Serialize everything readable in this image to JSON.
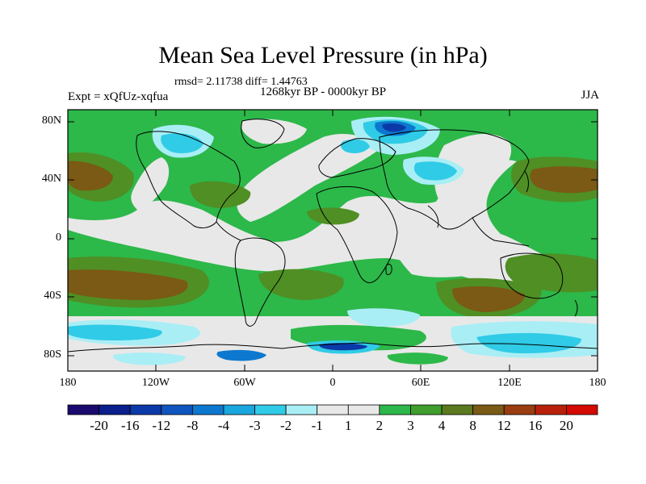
{
  "title": "Mean Sea Level Pressure (in hPa)",
  "stats_line": "rmsd= 2.11738 diff= 1.44763",
  "period": "1268kyr BP - 0000kyr BP",
  "experiment": "Expt = xQfUz-xqfua",
  "season": "JJA",
  "map": {
    "lat_labels": [
      "80N",
      "40N",
      "0",
      "40S",
      "80S"
    ],
    "lon_labels": [
      "180",
      "120W",
      "60W",
      "0",
      "60E",
      "120E",
      "180"
    ]
  },
  "colorbar": {
    "labels": [
      "-20",
      "-16",
      "-12",
      "-8",
      "-4",
      "-3",
      "-2",
      "-1",
      "1",
      "2",
      "3",
      "4",
      "8",
      "12",
      "16",
      "20"
    ],
    "colors": [
      "#1a0a6e",
      "#0a1f8c",
      "#0b3aa8",
      "#0f55bf",
      "#0d78cf",
      "#1aa6de",
      "#30cbe6",
      "#a9eef5",
      "#e8e8e8",
      "#2cb84a",
      "#3f9e2c",
      "#5b7a1e",
      "#7a5a14",
      "#9a3d10",
      "#b8200a",
      "#d40a00"
    ]
  },
  "field_colors": {
    "neutral": "#e8e8e8",
    "green": "#2db84a",
    "olive": "#4f8f24",
    "brown": "#7a5a14",
    "lightblue": "#a9eef5",
    "cyan": "#30cbe6",
    "blue": "#0d78cf",
    "darkblue": "#0b3aa8"
  }
}
